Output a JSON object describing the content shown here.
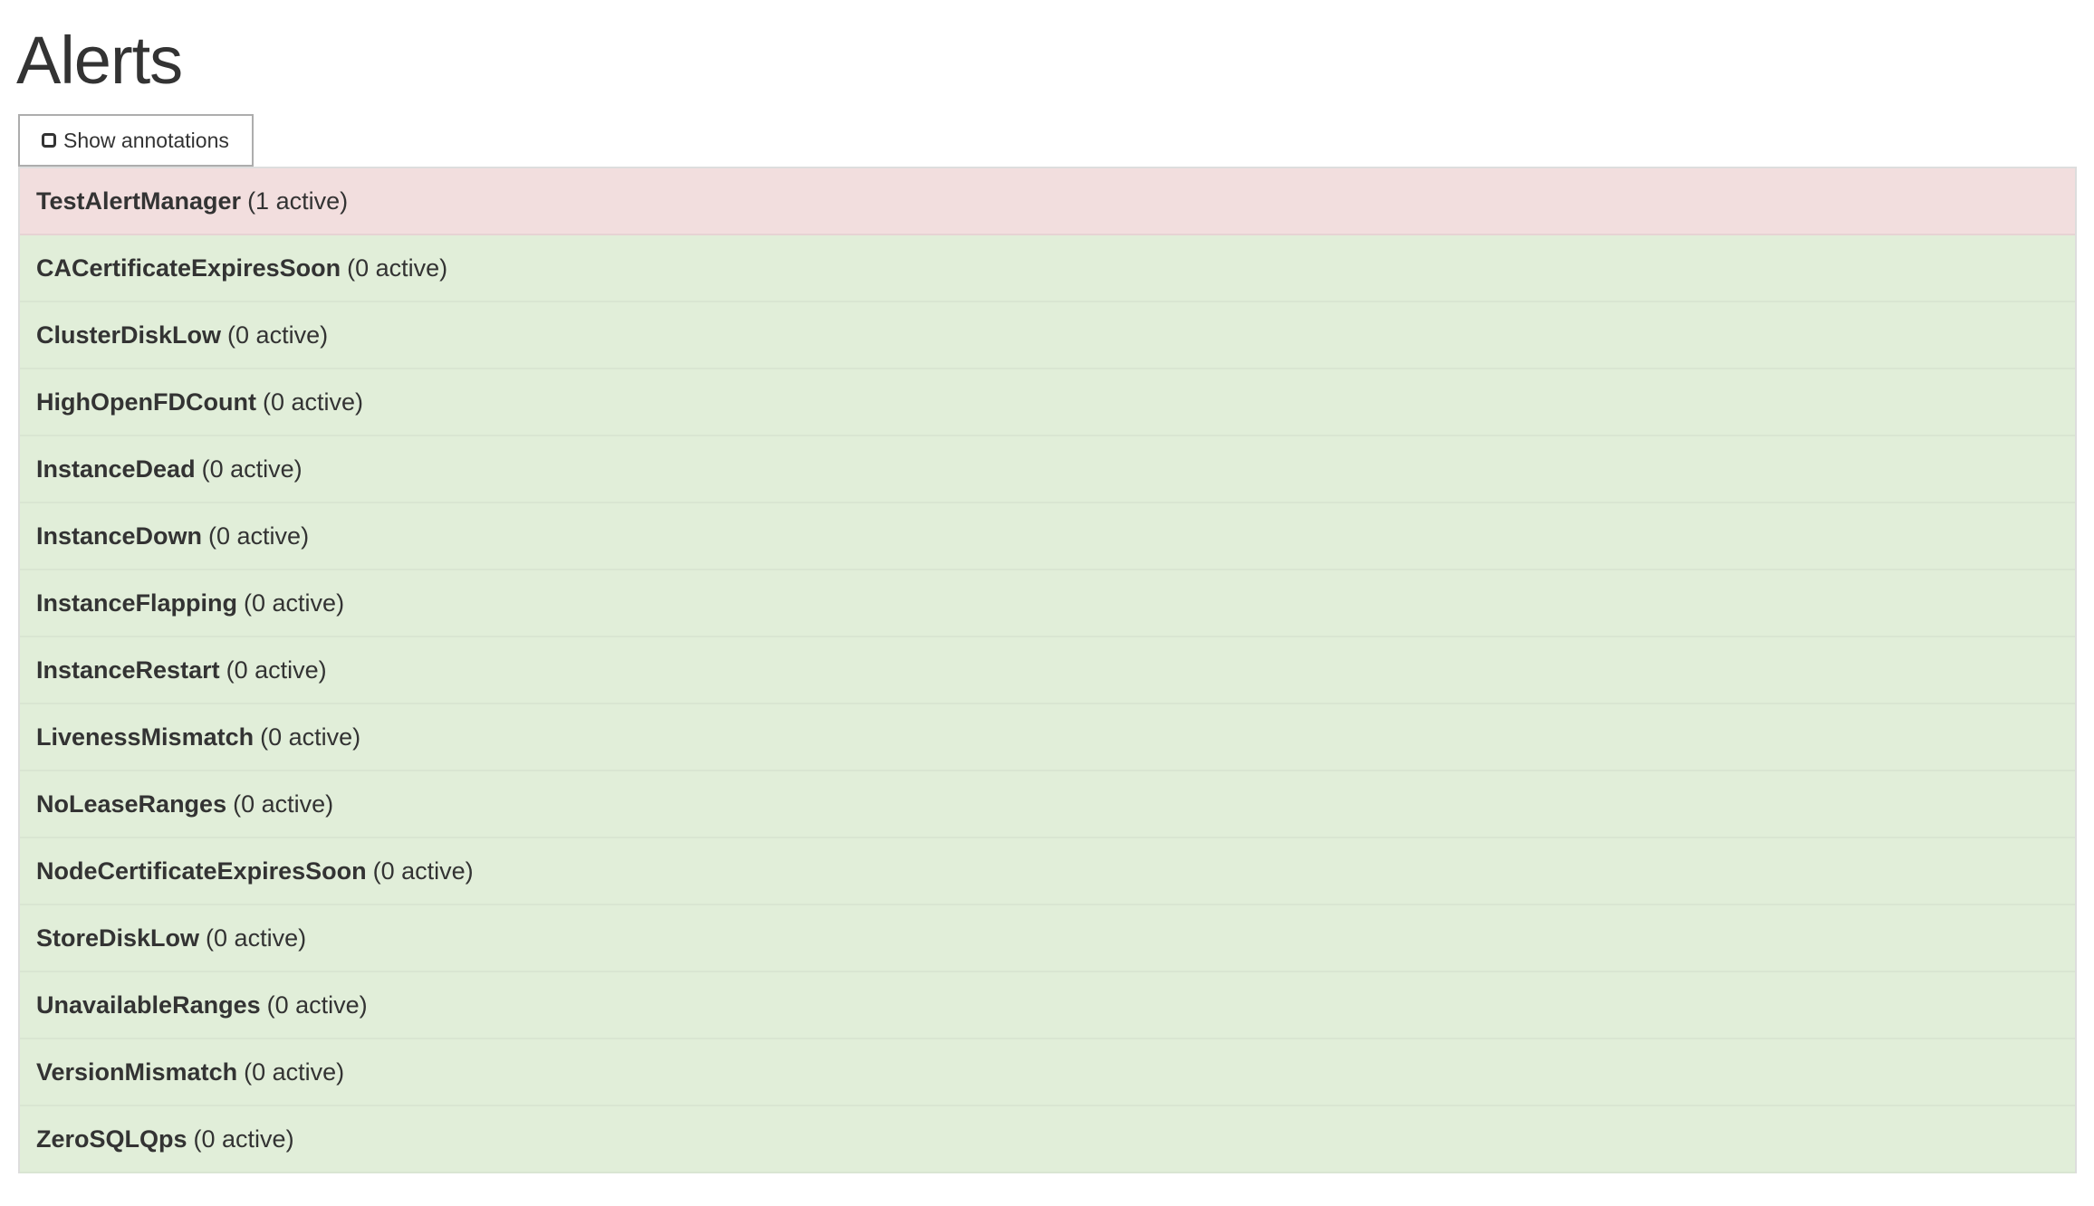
{
  "page": {
    "title": "Alerts"
  },
  "toolbar": {
    "show_annotations_label": "Show annotations",
    "show_annotations_checked": false
  },
  "colors": {
    "firing": "#f2dede",
    "inactive": "#e1eed9"
  },
  "alerts": [
    {
      "name": "TestAlertManager",
      "count": "(1 active)",
      "state": "firing"
    },
    {
      "name": "CACertificateExpiresSoon",
      "count": "(0 active)",
      "state": "inactive"
    },
    {
      "name": "ClusterDiskLow",
      "count": "(0 active)",
      "state": "inactive"
    },
    {
      "name": "HighOpenFDCount",
      "count": "(0 active)",
      "state": "inactive"
    },
    {
      "name": "InstanceDead",
      "count": "(0 active)",
      "state": "inactive"
    },
    {
      "name": "InstanceDown",
      "count": "(0 active)",
      "state": "inactive"
    },
    {
      "name": "InstanceFlapping",
      "count": "(0 active)",
      "state": "inactive"
    },
    {
      "name": "InstanceRestart",
      "count": "(0 active)",
      "state": "inactive"
    },
    {
      "name": "LivenessMismatch",
      "count": "(0 active)",
      "state": "inactive"
    },
    {
      "name": "NoLeaseRanges",
      "count": "(0 active)",
      "state": "inactive"
    },
    {
      "name": "NodeCertificateExpiresSoon",
      "count": "(0 active)",
      "state": "inactive"
    },
    {
      "name": "StoreDiskLow",
      "count": "(0 active)",
      "state": "inactive"
    },
    {
      "name": "UnavailableRanges",
      "count": "(0 active)",
      "state": "inactive"
    },
    {
      "name": "VersionMismatch",
      "count": "(0 active)",
      "state": "inactive"
    },
    {
      "name": "ZeroSQLQps",
      "count": "(0 active)",
      "state": "inactive"
    }
  ]
}
